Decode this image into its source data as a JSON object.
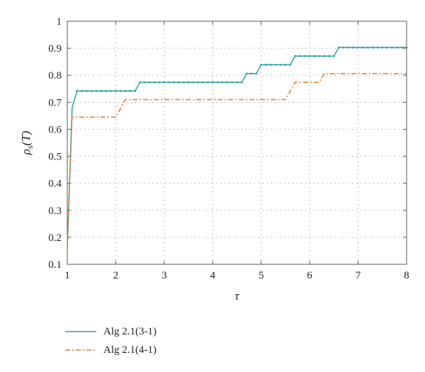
{
  "chart_data": {
    "type": "line",
    "title": "",
    "xlabel": "τ",
    "ylabel_main": "ρ",
    "ylabel_sub": "s",
    "ylabel_arg": "(T)",
    "xlim": [
      1,
      8
    ],
    "ylim": [
      0.1,
      1
    ],
    "xticks": [
      "1",
      "2",
      "3",
      "4",
      "5",
      "6",
      "7",
      "8"
    ],
    "yticks": [
      "0.1",
      "0.2",
      "0.3",
      "0.4",
      "0.5",
      "0.6",
      "0.7",
      "0.8",
      "0.9",
      "1"
    ],
    "grid": true,
    "legend_position": "bottom-left",
    "series": [
      {
        "name": "Alg 2.1(3-1)",
        "color": "#2aa1a3",
        "style": "solid-with-dots",
        "points": [
          [
            1.0,
            0.16
          ],
          [
            1.1,
            0.68
          ],
          [
            1.2,
            0.742
          ],
          [
            2.4,
            0.742
          ],
          [
            2.5,
            0.774
          ],
          [
            4.6,
            0.774
          ],
          [
            4.7,
            0.806
          ],
          [
            4.9,
            0.806
          ],
          [
            5.0,
            0.839
          ],
          [
            5.6,
            0.839
          ],
          [
            5.7,
            0.871
          ],
          [
            6.5,
            0.871
          ],
          [
            6.6,
            0.903
          ],
          [
            8.0,
            0.903
          ]
        ]
      },
      {
        "name": "Alg 2.1(4-1)",
        "color": "#e07a30",
        "style": "dash-dot",
        "points": [
          [
            1.0,
            0.16
          ],
          [
            1.1,
            0.645
          ],
          [
            2.0,
            0.645
          ],
          [
            2.1,
            0.677
          ],
          [
            2.2,
            0.71
          ],
          [
            5.5,
            0.71
          ],
          [
            5.7,
            0.774
          ],
          [
            6.2,
            0.774
          ],
          [
            6.3,
            0.806
          ],
          [
            8.0,
            0.806
          ]
        ]
      }
    ]
  }
}
